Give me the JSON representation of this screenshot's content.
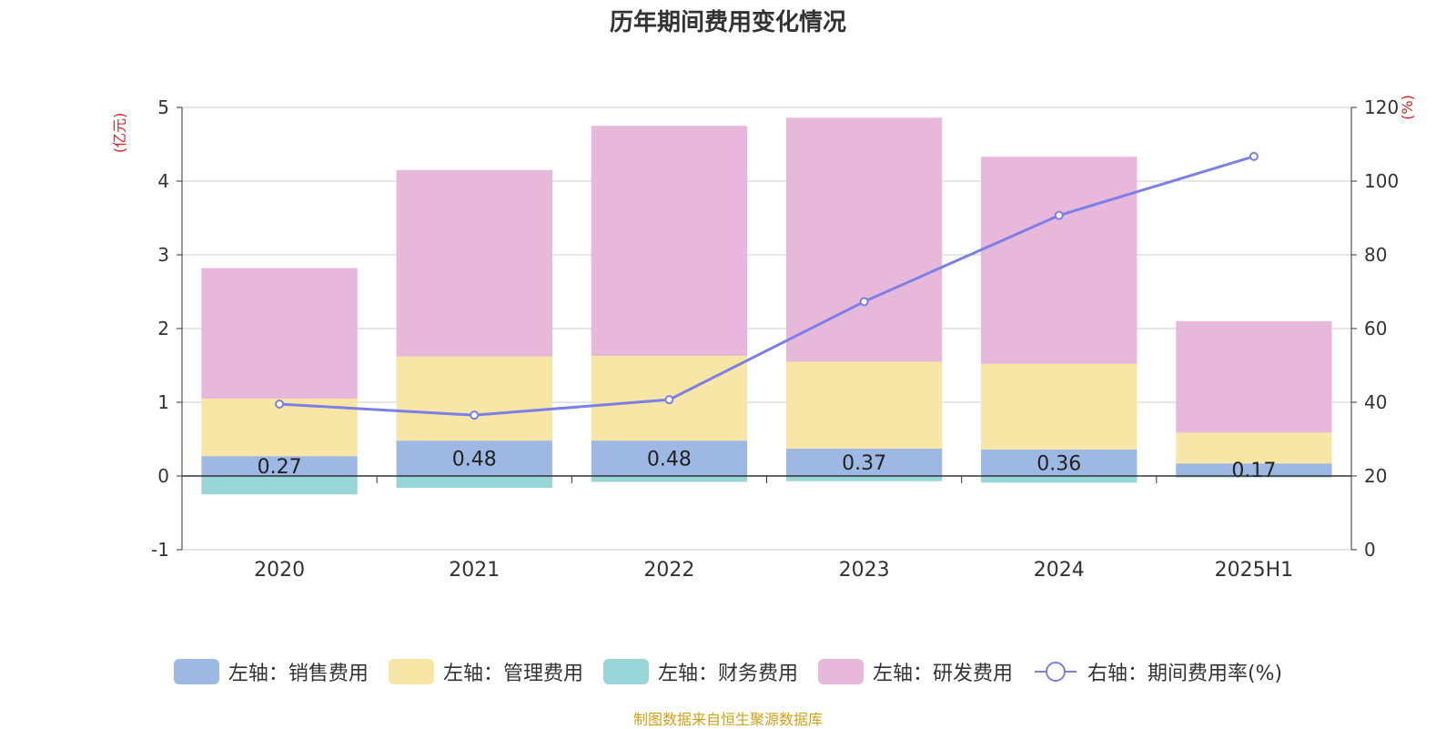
{
  "chart_data": {
    "type": "bar",
    "title": "历年期间费用变化情况",
    "categories": [
      "2020",
      "2021",
      "2022",
      "2023",
      "2024",
      "2025H1"
    ],
    "y_left": {
      "unit_label": "(亿元)",
      "range": [
        -1,
        5
      ],
      "ticks": [
        -1,
        0,
        1,
        2,
        3,
        4,
        5
      ]
    },
    "y_right": {
      "unit_label": "(%)",
      "range": [
        0,
        120
      ],
      "ticks": [
        0,
        20,
        40,
        60,
        80,
        100,
        120
      ]
    },
    "stacked": true,
    "series": [
      {
        "name": "左轴：销售费用",
        "axis": "left",
        "type": "bar",
        "color": "#9db8e2",
        "values": [
          0.27,
          0.48,
          0.48,
          0.37,
          0.36,
          0.17
        ],
        "labels": [
          "0.27",
          "0.48",
          "0.48",
          "0.37",
          "0.36",
          "0.17"
        ]
      },
      {
        "name": "左轴：管理费用",
        "axis": "left",
        "type": "bar",
        "color": "#f7e6a6",
        "values": [
          0.78,
          1.14,
          1.15,
          1.18,
          1.16,
          0.42
        ]
      },
      {
        "name": "左轴：财务费用",
        "axis": "left",
        "type": "bar",
        "color": "#97d5d6",
        "values": [
          -0.25,
          -0.16,
          -0.08,
          -0.07,
          -0.09,
          -0.02
        ]
      },
      {
        "name": "左轴：研发费用",
        "axis": "left",
        "type": "bar",
        "color": "#e7b8d9",
        "values": [
          1.77,
          2.53,
          3.12,
          3.31,
          2.81,
          1.51
        ]
      },
      {
        "name": "右轴：期间费用率(%)",
        "axis": "right",
        "type": "line",
        "color": "#7b7fe6",
        "values": [
          39.5,
          36.5,
          40.7,
          67.3,
          90.7,
          106.7
        ]
      }
    ],
    "grid": true,
    "legend_position": "bottom"
  },
  "footer": {
    "source_note": "制图数据来自恒生聚源数据库"
  }
}
